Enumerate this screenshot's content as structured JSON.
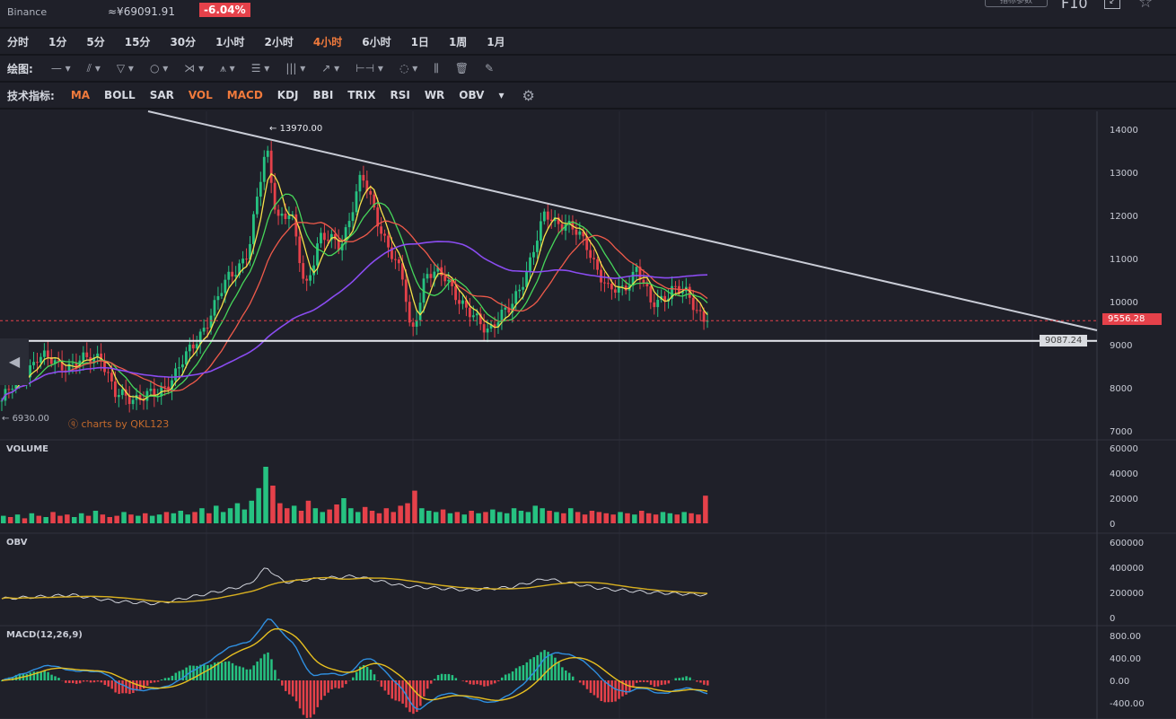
{
  "header": {
    "exchange": "Binance",
    "cny_price": "≈¥69091.91",
    "change": "-6.04%",
    "params_button": "指标参数",
    "f10": "F10"
  },
  "timeframes": {
    "items": [
      "分时",
      "1分",
      "5分",
      "15分",
      "30分",
      "1小时",
      "2小时",
      "4小时",
      "6小时",
      "1日",
      "1周",
      "1月"
    ],
    "active": "4小时"
  },
  "drawing": {
    "label": "绘图:",
    "tools": [
      "line-icon",
      "fib-icon",
      "channel-icon",
      "circle-icon",
      "wave-icon",
      "pattern-icon",
      "gann-icon",
      "parallel-icon",
      "arrow-icon",
      "measure-icon",
      "comment-icon",
      "candle-toggle-icon",
      "trash-icon",
      "pen-icon"
    ]
  },
  "indicators": {
    "label": "技术指标:",
    "items": [
      "MA",
      "BOLL",
      "SAR",
      "VOL",
      "MACD",
      "KDJ",
      "BBI",
      "TRIX",
      "RSI",
      "WR",
      "OBV"
    ],
    "active": [
      "MA",
      "VOL",
      "MACD"
    ]
  },
  "main": {
    "high_label": "13970.00",
    "low_label": "6930.00",
    "last_price": "9556.28",
    "hline_price": "9087.24",
    "watermark": "charts by QKL123",
    "back": "◀"
  },
  "colors": {
    "up": "#26c281",
    "down": "#e5414a",
    "ma5": "#f5e14a",
    "ma10": "#46d65a",
    "ma20": "#ef5a4a",
    "ma60": "#8a4cf0",
    "trend": "#c9ccd6",
    "obv": "#cfd2da",
    "obv_ma": "#d8b020",
    "dif": "#2f8fe0",
    "dea": "#e8c020"
  },
  "chart_data": [
    {
      "type": "candlestick",
      "title": "",
      "price_axis": [
        "14000",
        "13000",
        "12000",
        "11000",
        "10000",
        "9000",
        "8000",
        "7000"
      ],
      "ylim": [
        7000,
        14000
      ],
      "close_path": [
        [
          0,
          7700
        ],
        [
          5,
          8700
        ],
        [
          10,
          8500
        ],
        [
          14,
          8800
        ],
        [
          16,
          7800
        ],
        [
          22,
          7800
        ],
        [
          27,
          8900
        ],
        [
          32,
          10500
        ],
        [
          35,
          11200
        ],
        [
          37.5,
          13600
        ],
        [
          39,
          12000
        ],
        [
          41,
          12000
        ],
        [
          43,
          10300
        ],
        [
          45,
          11500
        ],
        [
          48,
          11300
        ],
        [
          51,
          12900
        ],
        [
          54,
          11600
        ],
        [
          57,
          10400
        ],
        [
          58,
          9200
        ],
        [
          60,
          10600
        ],
        [
          63,
          10600
        ],
        [
          66,
          9700
        ],
        [
          69,
          9400
        ],
        [
          72,
          9800
        ],
        [
          75,
          11000
        ],
        [
          77,
          12000
        ],
        [
          80,
          11800
        ],
        [
          83,
          11300
        ],
        [
          86,
          10200
        ],
        [
          88,
          10300
        ],
        [
          90,
          10800
        ],
        [
          92,
          9900
        ],
        [
          95,
          10300
        ],
        [
          97,
          10150
        ],
        [
          100,
          9556
        ]
      ],
      "ma_periods": [
        5,
        10,
        20,
        60
      ],
      "trendline": "descending",
      "support": 9087.24
    },
    {
      "type": "bar",
      "title": "VOLUME",
      "y_axis": [
        "60000",
        "40000",
        "20000",
        "0"
      ],
      "ylim": [
        0,
        60000
      ],
      "values": [
        6000,
        5000,
        7000,
        4000,
        8000,
        6000,
        5000,
        9000,
        6000,
        7000,
        5000,
        8000,
        6000,
        10000,
        7000,
        5000,
        6000,
        9000,
        7000,
        6000,
        8000,
        6000,
        7000,
        9000,
        8000,
        10000,
        7000,
        9000,
        12000,
        8000,
        14000,
        9000,
        12000,
        16000,
        11000,
        18000,
        28000,
        45000,
        30000,
        16000,
        12000,
        14000,
        10000,
        18000,
        12000,
        9000,
        11000,
        15000,
        20000,
        12000,
        9000,
        13000,
        10000,
        8000,
        12000,
        9000,
        14000,
        16000,
        26000,
        12000,
        10000,
        9000,
        11000,
        8000,
        9000,
        7000,
        10000,
        8000,
        9000,
        11000,
        9000,
        8000,
        12000,
        10000,
        9000,
        14000,
        12000,
        10000,
        9000,
        8000,
        12000,
        9000,
        7000,
        10000,
        9000,
        8000,
        7000,
        9000,
        8000,
        7000,
        10000,
        8000,
        7000,
        9000,
        8000,
        7000,
        9000,
        8000,
        7000,
        22000
      ],
      "directions": "mixed"
    },
    {
      "type": "line",
      "title": "OBV",
      "y_axis": [
        "600000",
        "400000",
        "200000",
        "0"
      ],
      "ylim": [
        0,
        600000
      ],
      "series": [
        [
          0,
          150000
        ],
        [
          10,
          180000
        ],
        [
          16,
          130000
        ],
        [
          22,
          110000
        ],
        [
          30,
          200000
        ],
        [
          35,
          260000
        ],
        [
          37.5,
          400000
        ],
        [
          40,
          280000
        ],
        [
          45,
          310000
        ],
        [
          50,
          330000
        ],
        [
          57,
          250000
        ],
        [
          66,
          220000
        ],
        [
          72,
          240000
        ],
        [
          77,
          310000
        ],
        [
          85,
          230000
        ],
        [
          92,
          200000
        ],
        [
          100,
          180000
        ]
      ]
    },
    {
      "type": "line",
      "title": "MACD(12,26,9)",
      "y_axis": [
        "800.00",
        "400.00",
        "0.00",
        "-400.00"
      ],
      "ylim": [
        -400,
        800
      ]
    }
  ]
}
